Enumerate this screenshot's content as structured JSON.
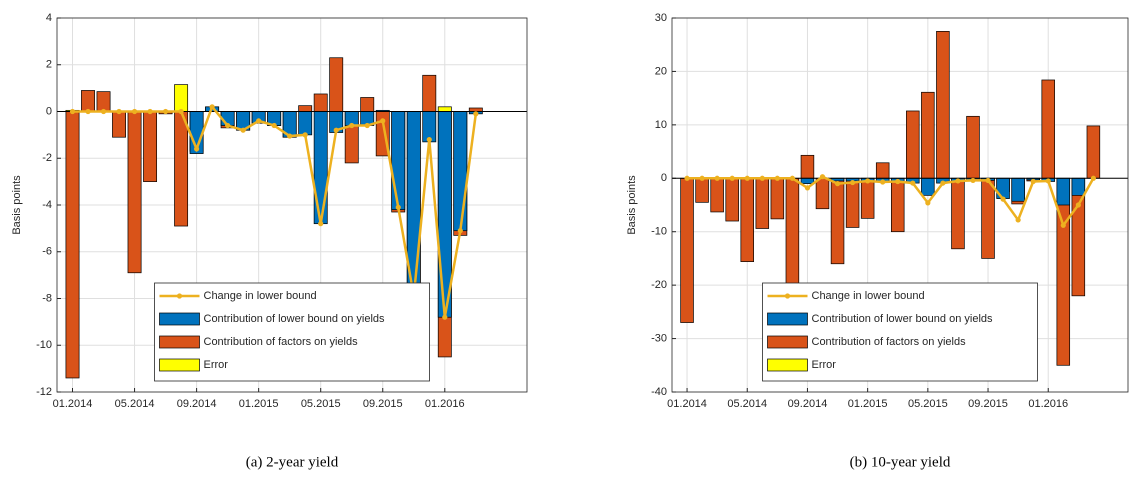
{
  "chart_data": [
    {
      "type": "bar",
      "caption": "(a) 2-year yield",
      "ylabel": "Basis points",
      "categories": [
        "01.2014",
        null,
        null,
        null,
        "05.2014",
        null,
        null,
        null,
        "09.2014",
        null,
        null,
        null,
        "01.2015",
        null,
        null,
        null,
        "05.2015",
        null,
        null,
        null,
        "09.2015",
        null,
        null,
        null,
        "01.2016",
        null,
        null,
        null
      ],
      "series": [
        {
          "name": "Change in lower bound",
          "type": "line",
          "color": "#edb120",
          "values": [
            0,
            0,
            0,
            0,
            0,
            0,
            0,
            0,
            -1.6,
            0.2,
            -0.6,
            -0.8,
            -0.4,
            -0.6,
            -1.05,
            -1.0,
            -4.8,
            -0.8,
            -0.6,
            -0.6,
            -0.4,
            -4.1,
            -7.9,
            -1.2,
            -8.8,
            -5.1,
            -0.1,
            null
          ]
        },
        {
          "name": "Contribution of lower bound on yields",
          "color": "#0072bd",
          "values": [
            0,
            0,
            0,
            0,
            0,
            0,
            0,
            0,
            -1.8,
            0.2,
            -0.6,
            -0.8,
            -0.5,
            -0.6,
            -1.1,
            -1.0,
            -4.8,
            -0.9,
            -0.6,
            -0.6,
            0.05,
            -4.2,
            -7.9,
            -1.3,
            -8.8,
            -5.1,
            -0.1,
            null
          ]
        },
        {
          "name": "Contribution of factors on yields",
          "color": "#d95319",
          "values": [
            -11.4,
            0.9,
            0.85,
            -1.1,
            -6.9,
            -3.0,
            -0.1,
            -4.9,
            -1.7,
            0.2,
            -0.7,
            -0.8,
            -0.5,
            -0.6,
            -1.1,
            0.25,
            0.75,
            2.3,
            -2.2,
            0.6,
            -1.9,
            -4.3,
            -8.0,
            1.55,
            -10.5,
            -5.3,
            0.15,
            null
          ]
        },
        {
          "name": "Error",
          "color": "#ffff00",
          "values": [
            0.05,
            0,
            0,
            0,
            0,
            0,
            0,
            1.15,
            0,
            0,
            0,
            0,
            0,
            0,
            0,
            0,
            0,
            0,
            0,
            0,
            0,
            0,
            0,
            0,
            0.2,
            0,
            0,
            null
          ]
        }
      ],
      "ylim": [
        -12,
        4
      ],
      "yticks": [
        -12,
        -10,
        -8,
        -6,
        -4,
        -2,
        0,
        2,
        4
      ],
      "grid": true,
      "legend": "lower center"
    },
    {
      "type": "bar",
      "caption": "(b) 10-year yield",
      "ylabel": "Basis points",
      "categories": [
        "01.2014",
        null,
        null,
        null,
        "05.2014",
        null,
        null,
        null,
        "09.2014",
        null,
        null,
        null,
        "01.2015",
        null,
        null,
        null,
        "05.2015",
        null,
        null,
        null,
        "09.2015",
        null,
        null,
        null,
        "01.2016",
        null,
        null,
        null
      ],
      "series": [
        {
          "name": "Change in lower bound",
          "type": "line",
          "color": "#edb120",
          "values": [
            0,
            0,
            0,
            0,
            0,
            0,
            0,
            0,
            -1.8,
            0.3,
            -1,
            -0.8,
            -0.5,
            -0.7,
            -0.6,
            -0.9,
            -4.6,
            -0.9,
            -0.5,
            -0.4,
            -0.4,
            -3.9,
            -7.8,
            -0.6,
            -0.5,
            -8.8,
            -5,
            0
          ]
        },
        {
          "name": "Contribution of lower bound on yields",
          "color": "#0072bd",
          "values": [
            0,
            0,
            0,
            0,
            0,
            0,
            0,
            0,
            -1,
            0,
            -0.5,
            -0.5,
            -0.5,
            -0.7,
            -0.6,
            -0.9,
            -3.2,
            -0.9,
            -0.5,
            -0.5,
            -0.4,
            -3.8,
            -4.3,
            -0.3,
            -0.6,
            -5,
            -3.2,
            0
          ]
        },
        {
          "name": "Contribution of factors on yields",
          "color": "#d95319",
          "values": [
            -27,
            -4.5,
            -6.3,
            -8,
            -15.6,
            -9.4,
            -7.6,
            -25,
            4.3,
            -5.7,
            -16,
            -9.2,
            -7.5,
            2.9,
            -10,
            12.6,
            16.1,
            27.5,
            -13.2,
            11.6,
            -15,
            -2.5,
            -4.8,
            -0.5,
            18.4,
            -35,
            -22,
            9.8
          ]
        },
        {
          "name": "Error",
          "color": "#ffff00",
          "values": [
            0,
            0,
            0,
            0,
            0,
            0,
            0,
            0,
            0,
            0,
            0,
            0,
            0,
            0,
            0,
            0,
            0,
            0,
            0,
            0,
            0,
            0,
            0,
            0,
            0,
            0,
            0,
            0
          ]
        }
      ],
      "ylim": [
        -40,
        30
      ],
      "yticks": [
        -40,
        -30,
        -20,
        -10,
        0,
        10,
        20,
        30
      ],
      "grid": true,
      "legend": "lower center"
    }
  ]
}
